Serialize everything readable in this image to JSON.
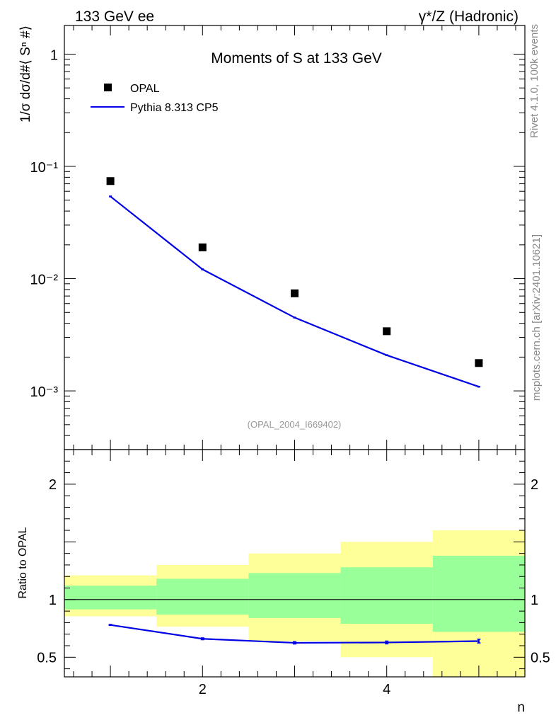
{
  "header": {
    "left": "133 GeV ee",
    "right": "γ*/Z (Hadronic)"
  },
  "side": {
    "rivet": "Rivet 4.1.0,  100k events",
    "mcplots": "mcplots.cern.ch [arXiv:2401.10621]"
  },
  "chart_data": [
    {
      "type": "scatter",
      "title": "Moments of S at 133 GeV",
      "ylabel": "1/σ  dσ/d#⟨ Sⁿ #⟩",
      "yscale": "log",
      "xlim": [
        0.5,
        5.5
      ],
      "ylim": [
        0.0003,
        1.8
      ],
      "x": [
        1,
        2,
        3,
        4,
        5
      ],
      "y_tick_labels": [
        "1",
        "10⁻¹",
        "10⁻²",
        "10⁻³"
      ],
      "y_tick_values": [
        1,
        0.1,
        0.01,
        0.001
      ],
      "watermark": "(OPAL_2004_I669402)",
      "legend": {
        "placement": "top-left",
        "entries": [
          "OPAL",
          "Pythia 8.313 CP5"
        ]
      },
      "series": [
        {
          "name": "OPAL",
          "style": "markers",
          "color": "#000000",
          "values": [
            0.074,
            0.019,
            0.0074,
            0.0034,
            0.00177
          ]
        },
        {
          "name": "Pythia 8.313 CP5",
          "style": "line",
          "color": "#0000e6",
          "values": [
            0.054,
            0.0121,
            0.0045,
            0.00208,
            0.00109
          ]
        }
      ]
    },
    {
      "type": "line",
      "ylabel": "Ratio to OPAL",
      "xlabel": "n",
      "xlim": [
        0.5,
        5.5
      ],
      "ylim": [
        0.33,
        2.3
      ],
      "x_tick_labels": [
        "2",
        "4"
      ],
      "x_tick_values": [
        2,
        4
      ],
      "y_tick_labels": [
        "0.5",
        "1",
        "2"
      ],
      "y_tick_values": [
        0.5,
        1,
        2
      ],
      "reference_line": 1,
      "bands": {
        "bins": [
          [
            0.5,
            1.5
          ],
          [
            1.5,
            2.5
          ],
          [
            2.5,
            3.5
          ],
          [
            3.5,
            4.5
          ],
          [
            4.5,
            5.5
          ]
        ],
        "yellow": [
          [
            0.855,
            1.21
          ],
          [
            0.765,
            1.3
          ],
          [
            0.64,
            1.4
          ],
          [
            0.5,
            1.5
          ],
          [
            0.33,
            1.6
          ]
        ],
        "green": [
          [
            0.915,
            1.12
          ],
          [
            0.87,
            1.18
          ],
          [
            0.84,
            1.23
          ],
          [
            0.79,
            1.28
          ],
          [
            0.72,
            1.38
          ]
        ]
      },
      "series": [
        {
          "name": "Pythia 8.313 CP5",
          "color": "#0000e6",
          "values": [
            0.78,
            0.66,
            0.625,
            0.628,
            0.64
          ],
          "errors": [
            0.004,
            0.008,
            0.01,
            0.012,
            0.016
          ]
        }
      ]
    }
  ]
}
